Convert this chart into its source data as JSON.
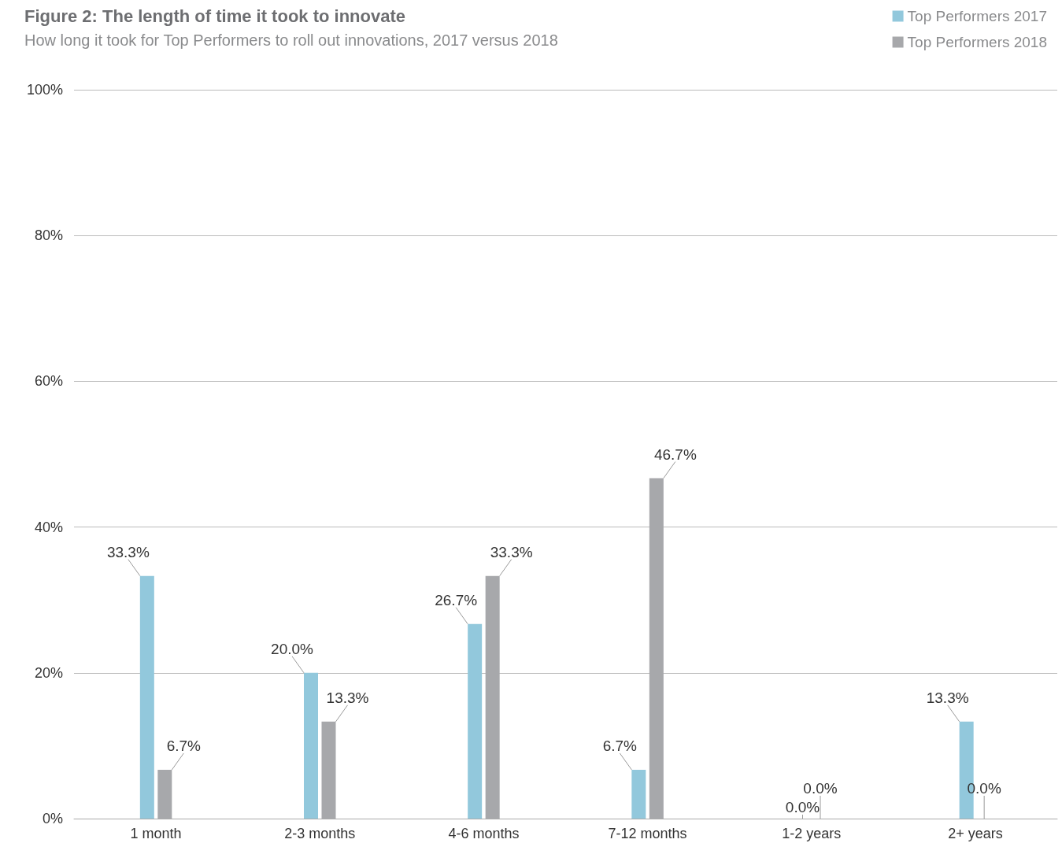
{
  "chart_data": {
    "type": "bar",
    "title": "Figure 2: The length of time it took to innovate",
    "subtitle": "How long it took for Top Performers to roll out innovations, 2017 versus 2018",
    "categories": [
      "1 month",
      "2-3 months",
      "4-6 months",
      "7-12 months",
      "1-2 years",
      "2+ years"
    ],
    "series": [
      {
        "name": "Top Performers 2017",
        "color": "#92c8dc",
        "values": [
          33.3,
          20.0,
          26.7,
          6.7,
          0.0,
          13.3
        ],
        "value_labels": [
          "33.3%",
          "20.0%",
          "26.7%",
          "6.7%",
          "0.0%",
          "13.3%"
        ]
      },
      {
        "name": "Top Performers 2018",
        "color": "#a7a8ab",
        "values": [
          6.7,
          13.3,
          33.3,
          46.7,
          0.0,
          0.0
        ],
        "value_labels": [
          "6.7%",
          "13.3%",
          "33.3%",
          "46.7%",
          "0.0%",
          "0.0%"
        ]
      }
    ],
    "ylim": [
      0,
      100
    ],
    "yticks": [
      {
        "value": 0,
        "label": "0%"
      },
      {
        "value": 20,
        "label": "20%"
      },
      {
        "value": 40,
        "label": "40%"
      },
      {
        "value": 60,
        "label": "60%"
      },
      {
        "value": 80,
        "label": "80%"
      },
      {
        "value": 100,
        "label": "100%"
      }
    ],
    "grid": "y",
    "legend": "top right"
  }
}
